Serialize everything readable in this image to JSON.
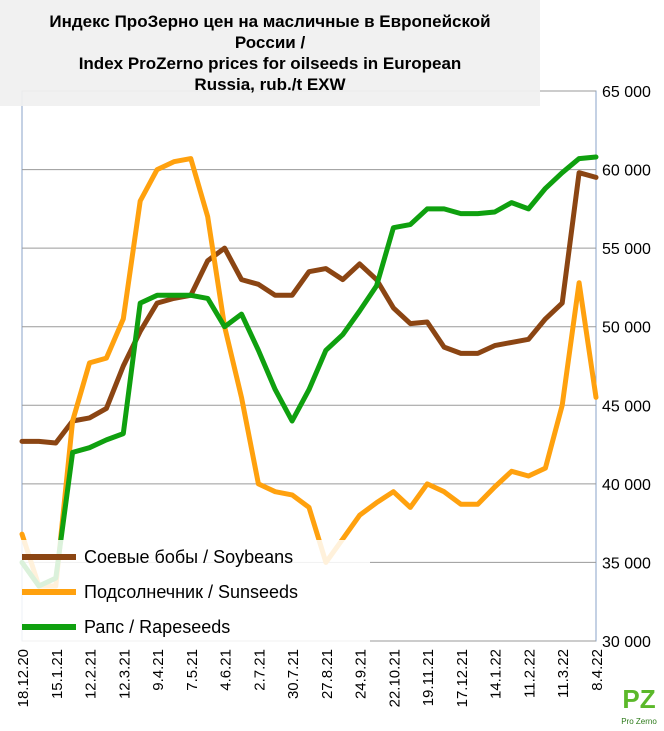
{
  "chart_data": {
    "type": "line",
    "title": [
      "Индекс ПроЗерно цен на масличные в Европейской",
      "России /",
      "Index ProZerno prices for oilseeds in European",
      "Russia, rub./t EXW"
    ],
    "categories": [
      "18.12.20",
      null,
      "15.1.21",
      null,
      "12.2.21",
      null,
      "12.3.21",
      null,
      "9.4.21",
      null,
      "7.5.21",
      null,
      "4.6.21",
      null,
      "2.7.21",
      null,
      "30.7.21",
      null,
      "27.8.21",
      null,
      "24.9.21",
      null,
      "22.10.21",
      null,
      "19.11.21",
      null,
      "17.12.21",
      null,
      "14.1.22",
      null,
      "11.2.22",
      null,
      "11.3.22",
      null,
      "8.4.22"
    ],
    "series": [
      {
        "name": "Соевые бобы / Soybeans",
        "color": "#8b4513",
        "values": [
          42700,
          42700,
          42600,
          44000,
          44200,
          44800,
          47500,
          49700,
          51500,
          51800,
          52000,
          54200,
          55000,
          53000,
          52700,
          52000,
          52000,
          53500,
          53700,
          53000,
          54000,
          53000,
          51200,
          50200,
          50300,
          48700,
          48300,
          48300,
          48800,
          49000,
          49200,
          50500,
          51500,
          59800,
          59500
        ]
      },
      {
        "name": "Подсолнечник / Sunseeds",
        "color": "#ffa10e",
        "values": [
          36800,
          33500,
          33500,
          44000,
          47700,
          48000,
          50500,
          58000,
          60000,
          60500,
          60700,
          57000,
          50000,
          45500,
          40000,
          39500,
          39300,
          38500,
          35000,
          36500,
          38000,
          38800,
          39500,
          38500,
          40000,
          39500,
          38700,
          38700,
          39800,
          40800,
          40500,
          41000,
          45000,
          52800,
          45500
        ]
      },
      {
        "name": "Рапс / Rapeseeds",
        "color": "#0fa00f",
        "values": [
          35000,
          33500,
          34000,
          42000,
          42300,
          42800,
          43200,
          51500,
          52000,
          52000,
          52000,
          51800,
          50000,
          50800,
          48500,
          46000,
          44000,
          46000,
          48500,
          49500,
          51000,
          52600,
          56300,
          56500,
          57500,
          57500,
          57200,
          57200,
          57300,
          57900,
          57500,
          58800,
          59800,
          60700,
          60800
        ]
      }
    ],
    "ylim": [
      30000,
      65000
    ],
    "yticks": [
      {
        "value": 30000,
        "label": "30 000"
      },
      {
        "value": 35000,
        "label": "35 000"
      },
      {
        "value": 40000,
        "label": "40 000"
      },
      {
        "value": 45000,
        "label": "45 000"
      },
      {
        "value": 50000,
        "label": "50 000"
      },
      {
        "value": 55000,
        "label": "55 000"
      },
      {
        "value": 60000,
        "label": "60 000"
      },
      {
        "value": 65000,
        "label": "65 000"
      }
    ],
    "grid": true,
    "legend": "lower left"
  },
  "logo": {
    "text": "Pro Zerno"
  }
}
